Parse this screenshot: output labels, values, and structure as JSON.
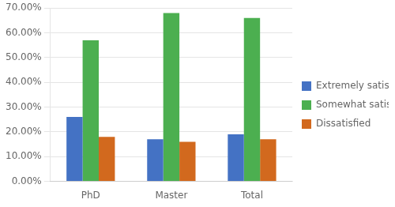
{
  "chart_data": {
    "type": "bar",
    "categories": [
      "PhD",
      "Master",
      "Total"
    ],
    "series": [
      {
        "name": "Extremely satisfied",
        "color": "#4472C4",
        "values": [
          0.26,
          0.17,
          0.19
        ]
      },
      {
        "name": "Somewhat satisfied",
        "color": "#4CAF50",
        "values": [
          0.57,
          0.68,
          0.66
        ]
      },
      {
        "name": "Dissatisfied",
        "color": "#D2691E",
        "values": [
          0.18,
          0.16,
          0.17
        ]
      }
    ],
    "ylim": [
      0.0,
      0.7
    ],
    "yticks": [
      {
        "value": 0.0,
        "label": "0.00%"
      },
      {
        "value": 0.1,
        "label": "10.00%"
      },
      {
        "value": 0.2,
        "label": "20.00%"
      },
      {
        "value": 0.3,
        "label": "30.00%"
      },
      {
        "value": 0.4,
        "label": "40.00%"
      },
      {
        "value": 0.5,
        "label": "50.00%"
      },
      {
        "value": 0.6,
        "label": "60.00%"
      },
      {
        "value": 0.7,
        "label": "70.00%"
      }
    ],
    "grid": true,
    "legend": "right"
  }
}
